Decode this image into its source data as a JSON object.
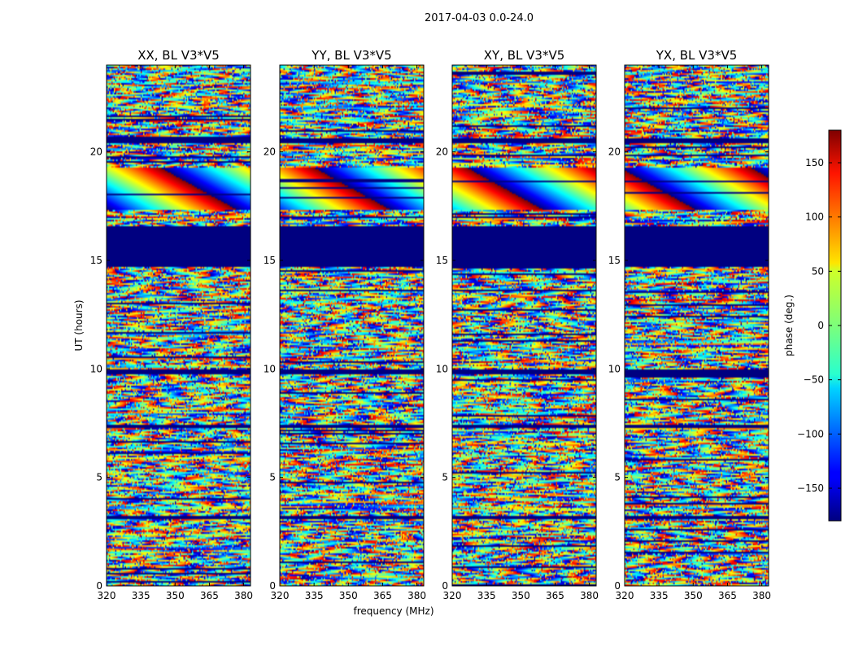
{
  "suptitle": "2017-04-03 0.0-24.0",
  "chart_data": {
    "type": "heatmap",
    "title": "2017-04-03 0.0-24.0",
    "xlabel": "frequency (MHz)",
    "ylabel": "UT (hours)",
    "xlim": [
      320,
      383
    ],
    "ylim": [
      0,
      24
    ],
    "xticks": [
      "320",
      "335",
      "350",
      "365",
      "380"
    ],
    "xtick_values": [
      320,
      335,
      350,
      365,
      380
    ],
    "yticks": [
      "0",
      "5",
      "10",
      "15",
      "20"
    ],
    "ytick_values": [
      0,
      5,
      10,
      15,
      20
    ],
    "panels": [
      {
        "title": "XX, BL V3*V5",
        "products": "XX"
      },
      {
        "title": "YY, BL V3*V5",
        "products": "YY"
      },
      {
        "title": "XY, BL V3*V5",
        "products": "XY"
      },
      {
        "title": "YX, BL V3*V5",
        "products": "YX"
      }
    ],
    "colorbar": {
      "label": "phase (deg.)",
      "range": [
        -180,
        180
      ],
      "ticks": [
        "150",
        "100",
        "50",
        "0",
        "−50",
        "−100",
        "−150"
      ],
      "tick_values": [
        150,
        100,
        50,
        0,
        -50,
        -100,
        -150
      ],
      "colormap": "jet"
    },
    "flagged_ut_ranges": [
      [
        14.7,
        16.6
      ],
      [
        20.4,
        20.6
      ],
      [
        9.75,
        9.95
      ],
      [
        3.1,
        3.25
      ],
      [
        7.3,
        7.45
      ]
    ]
  }
}
